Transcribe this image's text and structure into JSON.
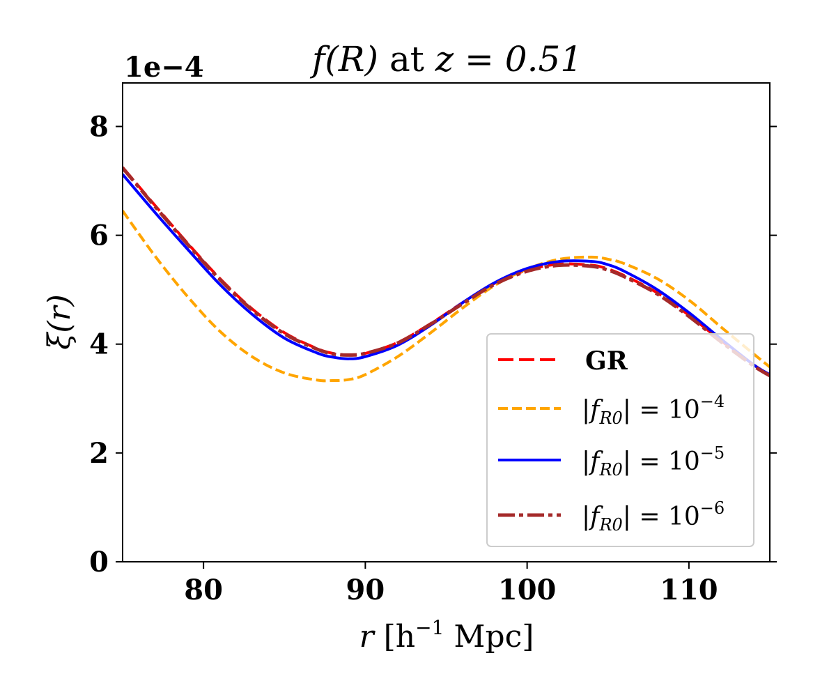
{
  "chart_data": {
    "type": "line",
    "title_parts": [
      "f(R)",
      " at ",
      "z = 0.51"
    ],
    "xlabel_parts": [
      "r",
      " [h",
      "−1",
      " Mpc]"
    ],
    "ylabel_parts": [
      "ξ(r)"
    ],
    "y_offset_label": "1e−4",
    "xlim": [
      75,
      115
    ],
    "ylim": [
      0,
      8.8
    ],
    "y_scale_exponent": -4,
    "xticks": [
      80,
      90,
      100,
      110
    ],
    "xtick_labels": [
      "80",
      "90",
      "100",
      "110"
    ],
    "yticks": [
      0,
      2,
      4,
      6,
      8
    ],
    "ytick_labels": [
      "0",
      "2",
      "4",
      "6",
      "8"
    ],
    "grid": false,
    "legend_position": "lower right",
    "series": [
      {
        "name": "GR",
        "legend_parts": [
          "GR"
        ],
        "color": "#ff0000",
        "style": "dashed",
        "x": [
          75,
          77,
          79,
          81,
          83,
          85,
          87,
          88,
          89,
          90,
          92,
          94,
          96,
          98,
          100,
          102,
          104,
          105,
          106,
          108,
          110,
          112,
          114,
          115
        ],
        "y": [
          7.25,
          6.55,
          5.86,
          5.21,
          4.65,
          4.21,
          3.92,
          3.83,
          3.8,
          3.83,
          4.03,
          4.37,
          4.76,
          5.12,
          5.36,
          5.47,
          5.45,
          5.38,
          5.26,
          4.95,
          4.53,
          4.06,
          3.62,
          3.43
        ]
      },
      {
        "name": "|fR0| = 10^-4",
        "legend_parts": [
          "|f",
          "R0",
          "| = 10",
          "−4"
        ],
        "color": "#ffa500",
        "style": "dashed",
        "x": [
          75,
          77,
          79,
          81,
          83,
          85,
          87,
          88,
          89,
          90,
          92,
          94,
          96,
          98,
          100,
          102,
          104,
          105,
          106,
          108,
          110,
          112,
          114,
          115
        ],
        "y": [
          6.45,
          5.62,
          4.88,
          4.24,
          3.77,
          3.47,
          3.34,
          3.33,
          3.35,
          3.44,
          3.77,
          4.2,
          4.66,
          5.08,
          5.38,
          5.56,
          5.6,
          5.56,
          5.48,
          5.21,
          4.81,
          4.31,
          3.82,
          3.58
        ]
      },
      {
        "name": "|fR0| = 10^-5",
        "legend_parts": [
          "|f",
          "R0",
          "| = 10",
          "−5"
        ],
        "color": "#0000ff",
        "style": "solid",
        "x": [
          75,
          77,
          79,
          81,
          83,
          85,
          87,
          88,
          89,
          90,
          92,
          94,
          96,
          98,
          100,
          102,
          104,
          105,
          106,
          108,
          110,
          112,
          114,
          115
        ],
        "y": [
          7.12,
          6.42,
          5.75,
          5.1,
          4.55,
          4.11,
          3.84,
          3.76,
          3.73,
          3.77,
          3.98,
          4.34,
          4.76,
          5.13,
          5.39,
          5.52,
          5.52,
          5.46,
          5.34,
          5.01,
          4.58,
          4.09,
          3.62,
          3.44
        ]
      },
      {
        "name": "|fR0| = 10^-6",
        "legend_parts": [
          "|f",
          "R0",
          "| = 10",
          "−6"
        ],
        "color": "#a52a2a",
        "style": "dashdot",
        "x": [
          75,
          77,
          79,
          81,
          83,
          85,
          87,
          88,
          89,
          90,
          92,
          94,
          96,
          98,
          100,
          102,
          104,
          105,
          106,
          108,
          110,
          112,
          114,
          115
        ],
        "y": [
          7.24,
          6.53,
          5.84,
          5.19,
          4.63,
          4.19,
          3.91,
          3.82,
          3.8,
          3.83,
          4.02,
          4.36,
          4.74,
          5.1,
          5.34,
          5.45,
          5.43,
          5.36,
          5.24,
          4.93,
          4.51,
          4.04,
          3.6,
          3.42
        ]
      }
    ]
  }
}
